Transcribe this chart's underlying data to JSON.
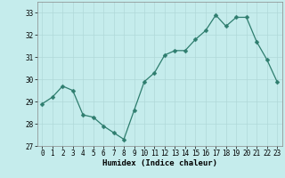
{
  "x": [
    0,
    1,
    2,
    3,
    4,
    5,
    6,
    7,
    8,
    9,
    10,
    11,
    12,
    13,
    14,
    15,
    16,
    17,
    18,
    19,
    20,
    21,
    22,
    23
  ],
  "y": [
    28.9,
    29.2,
    29.7,
    29.5,
    28.4,
    28.3,
    27.9,
    27.6,
    27.3,
    28.6,
    29.9,
    30.3,
    31.1,
    31.3,
    31.3,
    31.8,
    32.2,
    32.9,
    32.4,
    32.8,
    32.8,
    31.7,
    30.9,
    29.9
  ],
  "line_color": "#2e7d6e",
  "marker": "D",
  "marker_size": 2.5,
  "bg_color": "#c5ecec",
  "grid_color": "#b0d8d8",
  "xlabel": "Humidex (Indice chaleur)",
  "xlim": [
    -0.5,
    23.5
  ],
  "ylim": [
    27,
    33.5
  ],
  "yticks": [
    27,
    28,
    29,
    30,
    31,
    32,
    33
  ],
  "xticks": [
    0,
    1,
    2,
    3,
    4,
    5,
    6,
    7,
    8,
    9,
    10,
    11,
    12,
    13,
    14,
    15,
    16,
    17,
    18,
    19,
    20,
    21,
    22,
    23
  ],
  "tick_fontsize": 5.5,
  "xlabel_fontsize": 6.5,
  "spine_color": "#888888"
}
